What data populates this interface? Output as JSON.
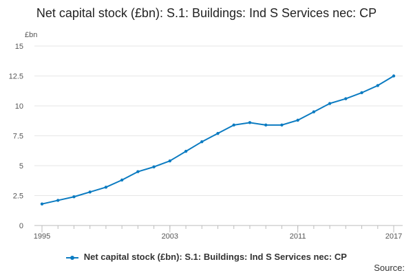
{
  "colors": {
    "series": "#0b7bc1",
    "grid": "#e6e6e6",
    "axis": "#bbbbbb"
  },
  "chart_data": {
    "type": "line",
    "title": "Net capital stock (£bn): S.1: Buildings: Ind S Services nec: CP",
    "ylabel": "£bn",
    "xlabel": "",
    "ylim": [
      0,
      15
    ],
    "yticks": [
      0,
      2.5,
      5,
      7.5,
      10,
      12.5,
      15
    ],
    "ytick_labels": [
      "0",
      "2.5",
      "5",
      "7.5",
      "10",
      "12.5",
      "15"
    ],
    "xlim": [
      1995,
      2017
    ],
    "xticks_major": [
      1995,
      2003,
      2011,
      2017
    ],
    "xtick_labels": [
      "1995",
      "2003",
      "2011",
      "2017"
    ],
    "grid": true,
    "legend_position": "bottom",
    "x": [
      1995,
      1996,
      1997,
      1998,
      1999,
      2000,
      2001,
      2002,
      2003,
      2004,
      2005,
      2006,
      2007,
      2008,
      2009,
      2010,
      2011,
      2012,
      2013,
      2014,
      2015,
      2016,
      2017
    ],
    "series": [
      {
        "name": "Net capital stock (£bn): S.1: Buildings: Ind S Services nec: CP",
        "values": [
          1.8,
          2.1,
          2.4,
          2.8,
          3.2,
          3.8,
          4.5,
          4.9,
          5.4,
          6.2,
          7.0,
          7.7,
          8.4,
          8.6,
          8.4,
          8.4,
          8.8,
          9.5,
          10.2,
          10.6,
          11.1,
          11.7,
          12.5
        ]
      }
    ]
  },
  "footer": {
    "source_label": "Source:"
  }
}
